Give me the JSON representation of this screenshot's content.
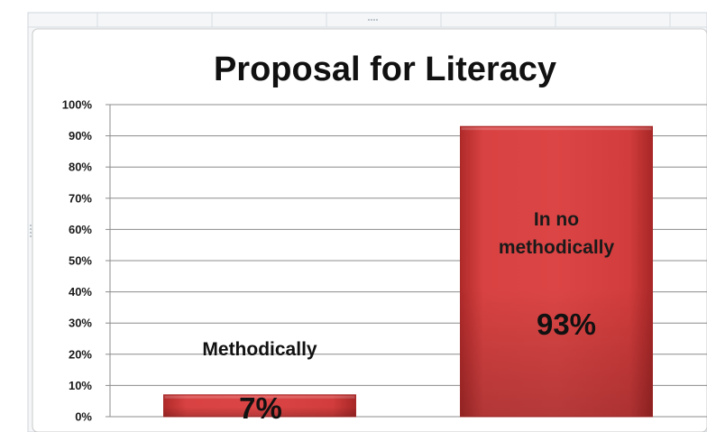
{
  "chart_data": {
    "type": "bar",
    "title": "Proposal for Literacy",
    "categories": [
      "Methodically",
      "In no methodically"
    ],
    "values": [
      7,
      93
    ],
    "value_labels": [
      "7%",
      "93%"
    ],
    "category_label_lines": [
      [
        "Methodically"
      ],
      [
        "In no",
        "methodically"
      ]
    ],
    "y_ticks": [
      "0%",
      "10%",
      "20%",
      "30%",
      "40%",
      "50%",
      "60%",
      "70%",
      "80%",
      "90%",
      "100%"
    ],
    "ylim": [
      0,
      100
    ],
    "grid": true,
    "legend": "none",
    "colors": {
      "bar": "#d63b3b",
      "bar_dark": "#b82d2d",
      "grid": "#8c8c8c",
      "frame": "#c8c8c8"
    }
  }
}
